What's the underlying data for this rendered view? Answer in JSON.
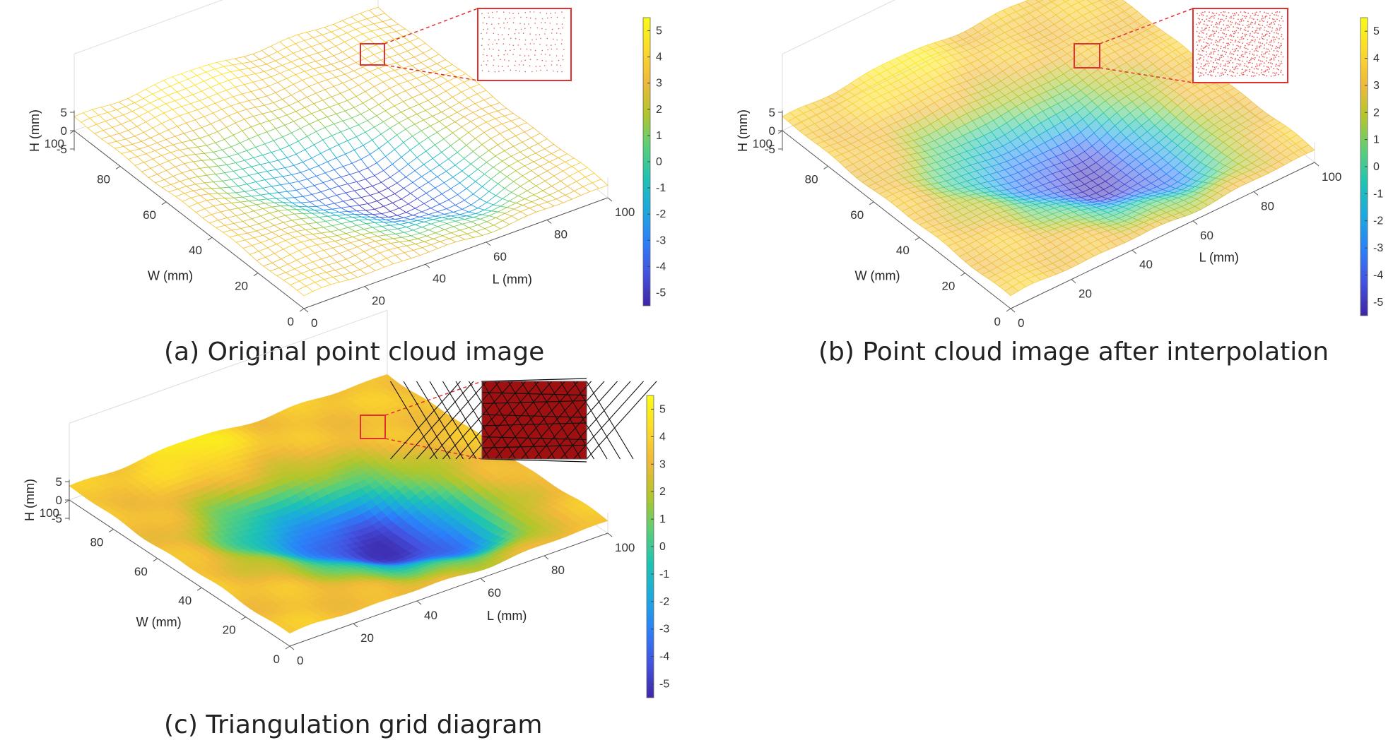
{
  "chart_data": [
    {
      "type": "surface",
      "panel_id": "a",
      "render_style": "sparse-mesh",
      "caption": "(a) Original point cloud image",
      "xlabel": "L (mm)",
      "ylabel": "W (mm)",
      "zlabel": "H (mm)",
      "x_ticks": [
        0,
        20,
        40,
        60,
        80,
        100
      ],
      "y_ticks": [
        0,
        20,
        40,
        60,
        80,
        100
      ],
      "z_ticks": [
        5,
        0,
        -5
      ],
      "colorbar_ticks": [
        5,
        4,
        3,
        2,
        1,
        0,
        -1,
        -2,
        -3,
        -4,
        -5
      ],
      "zlim": [
        -5.5,
        5.5
      ],
      "inset": "sparse red points"
    },
    {
      "type": "surface",
      "panel_id": "b",
      "render_style": "dense-mesh",
      "caption": "(b) Point cloud image after interpolation",
      "xlabel": "L (mm)",
      "ylabel": "W (mm)",
      "zlabel": "H (mm)",
      "x_ticks": [
        0,
        20,
        40,
        60,
        80,
        100
      ],
      "y_ticks": [
        0,
        20,
        40,
        60,
        80,
        100
      ],
      "z_ticks": [
        5,
        0,
        -5
      ],
      "colorbar_ticks": [
        5,
        4,
        3,
        2,
        1,
        0,
        -1,
        -2,
        -3,
        -4,
        -5
      ],
      "zlim": [
        -5.5,
        5.5
      ],
      "inset": "dense red points"
    },
    {
      "type": "surface",
      "panel_id": "c",
      "render_style": "solid",
      "caption": "(c) Triangulation grid diagram",
      "xlabel": "L (mm)",
      "ylabel": "W (mm)",
      "zlabel": "H (mm)",
      "x_ticks": [
        0,
        20,
        40,
        60,
        80,
        100
      ],
      "y_ticks": [
        0,
        20,
        40,
        60,
        80,
        100
      ],
      "z_ticks": [
        5,
        0,
        -5
      ],
      "colorbar_ticks": [
        5,
        4,
        3,
        2,
        1,
        0,
        -1,
        -2,
        -3,
        -4,
        -5
      ],
      "zlim": [
        -5.5,
        5.5
      ],
      "inset": "red triangulated mesh"
    }
  ],
  "colors": {
    "inset_border": "#e03030",
    "axis": "#555555",
    "grid": "#dddddd",
    "colormap": [
      "#3e26a8",
      "#4352e0",
      "#2c7ffa",
      "#1ca9df",
      "#1ec3b3",
      "#5ccf77",
      "#b2c62b",
      "#f0b93a",
      "#fcda2a",
      "#f9fb15"
    ]
  }
}
